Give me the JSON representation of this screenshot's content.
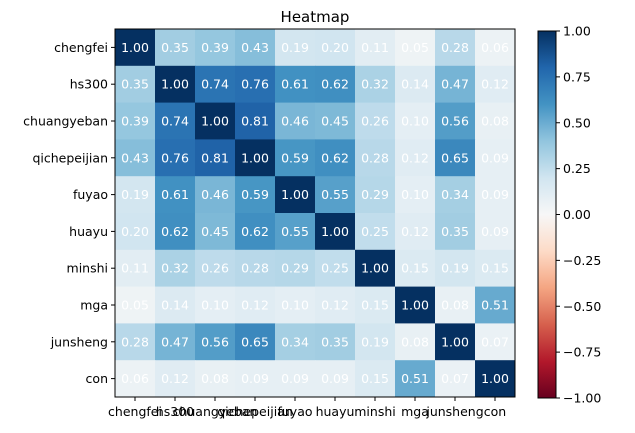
{
  "chart_data": {
    "type": "heatmap",
    "title": "Heatmap",
    "labels": [
      "chengfei",
      "hs300",
      "chuangyeban",
      "qichepeijian",
      "fuyao",
      "huayu",
      "minshi",
      "mga",
      "junsheng",
      "con"
    ],
    "values": [
      [
        1.0,
        0.35,
        0.39,
        0.43,
        0.19,
        0.2,
        0.11,
        0.05,
        0.28,
        0.06
      ],
      [
        0.35,
        1.0,
        0.74,
        0.76,
        0.61,
        0.62,
        0.32,
        0.14,
        0.47,
        0.12
      ],
      [
        0.39,
        0.74,
        1.0,
        0.81,
        0.46,
        0.45,
        0.26,
        0.1,
        0.56,
        0.08
      ],
      [
        0.43,
        0.76,
        0.81,
        1.0,
        0.59,
        0.62,
        0.28,
        0.12,
        0.65,
        0.09
      ],
      [
        0.19,
        0.61,
        0.46,
        0.59,
        1.0,
        0.55,
        0.29,
        0.1,
        0.34,
        0.09
      ],
      [
        0.2,
        0.62,
        0.45,
        0.62,
        0.55,
        1.0,
        0.25,
        0.12,
        0.35,
        0.09
      ],
      [
        0.11,
        0.32,
        0.26,
        0.28,
        0.29,
        0.25,
        1.0,
        0.15,
        0.19,
        0.15
      ],
      [
        0.05,
        0.14,
        0.1,
        0.12,
        0.1,
        0.12,
        0.15,
        1.0,
        0.08,
        0.51
      ],
      [
        0.28,
        0.47,
        0.56,
        0.65,
        0.34,
        0.35,
        0.19,
        0.08,
        1.0,
        0.07
      ],
      [
        0.06,
        0.12,
        0.08,
        0.09,
        0.09,
        0.09,
        0.15,
        0.51,
        0.07,
        1.0
      ]
    ],
    "value_format": "0.00",
    "colormap": "RdBu",
    "vmin": -1.0,
    "vmax": 1.0,
    "colorbar": {
      "ticks": [
        1.0,
        0.75,
        0.5,
        0.25,
        0.0,
        -0.25,
        -0.5,
        -0.75,
        -1.0
      ],
      "tick_labels": [
        "1.00",
        "0.75",
        "0.50",
        "0.25",
        "0.00",
        "−0.25",
        "−0.50",
        "−0.75",
        "−1.00"
      ],
      "position": "right"
    },
    "cell_text_color": "#ffffff",
    "grid": false
  }
}
